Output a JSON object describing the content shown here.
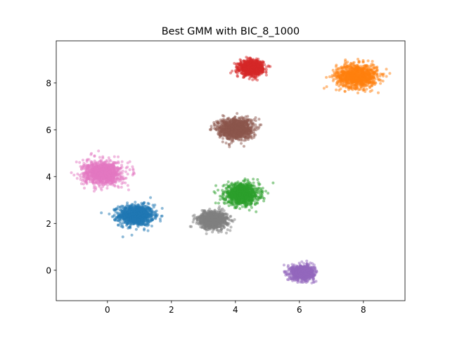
{
  "chart_data": {
    "type": "scatter",
    "title": "Best GMM with BIC_8_1000",
    "xlabel": "",
    "ylabel": "",
    "xlim": [
      -1.6,
      9.3
    ],
    "ylim": [
      -1.3,
      9.8
    ],
    "xticks": [
      0,
      2,
      4,
      6,
      8
    ],
    "yticks": [
      0,
      2,
      4,
      6,
      8
    ],
    "xtick_labels": [
      "0",
      "2",
      "4",
      "6",
      "8"
    ],
    "ytick_labels": [
      "0",
      "2",
      "4",
      "6",
      "8"
    ],
    "grid": false,
    "legend": "none",
    "point_opacity": 0.5,
    "clusters": [
      {
        "color": "#1f77b4",
        "center": [
          0.9,
          2.35
        ],
        "spread": [
          0.27,
          0.22
        ],
        "n": 1000
      },
      {
        "color": "#ff7f0e",
        "center": [
          7.8,
          8.3
        ],
        "spread": [
          0.32,
          0.25
        ],
        "n": 1000
      },
      {
        "color": "#2ca02c",
        "center": [
          4.2,
          3.25
        ],
        "spread": [
          0.27,
          0.22
        ],
        "n": 1000
      },
      {
        "color": "#d62728",
        "center": [
          4.5,
          8.65
        ],
        "spread": [
          0.18,
          0.15
        ],
        "n": 1000
      },
      {
        "color": "#9467bd",
        "center": [
          6.1,
          -0.1
        ],
        "spread": [
          0.18,
          0.15
        ],
        "n": 1000
      },
      {
        "color": "#8c564b",
        "center": [
          4.0,
          6.05
        ],
        "spread": [
          0.27,
          0.22
        ],
        "n": 1000
      },
      {
        "color": "#e377c2",
        "center": [
          -0.15,
          4.15
        ],
        "spread": [
          0.3,
          0.25
        ],
        "n": 1000
      },
      {
        "color": "#7f7f7f",
        "center": [
          3.3,
          2.15
        ],
        "spread": [
          0.22,
          0.18
        ],
        "n": 1000
      }
    ]
  }
}
